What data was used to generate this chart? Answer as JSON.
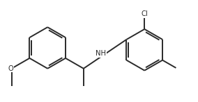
{
  "bg": "#ffffff",
  "lc": "#2a2a2a",
  "lw": 1.4,
  "fs": 7.2,
  "figw": 2.84,
  "figh": 1.47,
  "dpi": 100,
  "xlim": [
    0,
    10
  ],
  "ylim": [
    0,
    5.18
  ],
  "lcx": 2.4,
  "lcy": 2.75,
  "rcx": 7.3,
  "rcy": 2.65,
  "rr": 1.05
}
